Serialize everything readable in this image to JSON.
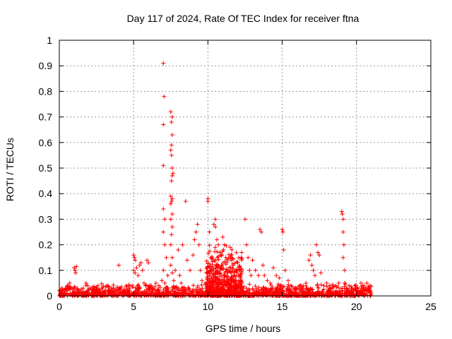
{
  "chart_data": {
    "type": "scatter",
    "title": "Day 117 of 2024, Rate Of TEC Index for receiver ftna",
    "xlabel": "GPS time / hours",
    "ylabel": "ROTI / TECUs",
    "xlim": [
      0,
      25
    ],
    "ylim": [
      0,
      1
    ],
    "x_ticks": [
      "0",
      "5",
      "10",
      "15",
      "20",
      "25"
    ],
    "y_ticks": [
      "0",
      "0.1",
      "0.2",
      "0.3",
      "0.4",
      "0.5",
      "0.6",
      "0.7",
      "0.8",
      "0.9",
      "1"
    ],
    "grid": true,
    "marker": "+",
    "marker_color": "#ff0000",
    "series": [
      {
        "points": [
          [
            0.0,
            0.02
          ],
          [
            0.1,
            0.015
          ],
          [
            0.2,
            0.025
          ],
          [
            0.3,
            0.02
          ],
          [
            0.4,
            0.03
          ],
          [
            0.5,
            0.02
          ],
          [
            0.6,
            0.04
          ],
          [
            0.7,
            0.05
          ],
          [
            0.8,
            0.03
          ],
          [
            0.9,
            0.025
          ],
          [
            1.0,
            0.11
          ],
          [
            1.05,
            0.1
          ],
          [
            1.1,
            0.09
          ],
          [
            1.15,
            0.115
          ],
          [
            1.2,
            0.03
          ],
          [
            1.4,
            0.02
          ],
          [
            1.6,
            0.03
          ],
          [
            1.8,
            0.05
          ],
          [
            1.9,
            0.04
          ],
          [
            2.1,
            0.03
          ],
          [
            2.3,
            0.02
          ],
          [
            2.5,
            0.035
          ],
          [
            2.7,
            0.025
          ],
          [
            2.9,
            0.03
          ],
          [
            3.1,
            0.02
          ],
          [
            3.3,
            0.025
          ],
          [
            3.5,
            0.03
          ],
          [
            3.7,
            0.02
          ],
          [
            3.9,
            0.035
          ],
          [
            4.1,
            0.03
          ],
          [
            4.0,
            0.12
          ],
          [
            4.3,
            0.02
          ],
          [
            4.5,
            0.04
          ],
          [
            4.7,
            0.03
          ],
          [
            4.9,
            0.04
          ],
          [
            5.0,
            0.16
          ],
          [
            5.05,
            0.15
          ],
          [
            5.1,
            0.14
          ],
          [
            5.0,
            0.1
          ],
          [
            5.1,
            0.09
          ],
          [
            5.2,
            0.11
          ],
          [
            5.3,
            0.08
          ],
          [
            5.4,
            0.12
          ],
          [
            5.5,
            0.13
          ],
          [
            5.6,
            0.1
          ],
          [
            5.7,
            0.05
          ],
          [
            5.8,
            0.04
          ],
          [
            5.9,
            0.14
          ],
          [
            6.0,
            0.13
          ],
          [
            6.1,
            0.04
          ],
          [
            6.3,
            0.03
          ],
          [
            6.5,
            0.05
          ],
          [
            6.7,
            0.04
          ],
          [
            6.9,
            0.06
          ],
          [
            7.0,
            0.91
          ],
          [
            7.05,
            0.78
          ],
          [
            7.0,
            0.67
          ],
          [
            7.0,
            0.51
          ],
          [
            7.0,
            0.34
          ],
          [
            7.1,
            0.3
          ],
          [
            7.0,
            0.25
          ],
          [
            7.1,
            0.2
          ],
          [
            7.2,
            0.15
          ],
          [
            7.0,
            0.1
          ],
          [
            7.1,
            0.05
          ],
          [
            7.2,
            0.03
          ],
          [
            7.3,
            0.08
          ],
          [
            7.5,
            0.72
          ],
          [
            7.6,
            0.7
          ],
          [
            7.55,
            0.68
          ],
          [
            7.6,
            0.63
          ],
          [
            7.55,
            0.59
          ],
          [
            7.5,
            0.57
          ],
          [
            7.55,
            0.55
          ],
          [
            7.6,
            0.5
          ],
          [
            7.65,
            0.48
          ],
          [
            7.6,
            0.47
          ],
          [
            7.55,
            0.45
          ],
          [
            7.5,
            0.39
          ],
          [
            7.6,
            0.38
          ],
          [
            7.55,
            0.37
          ],
          [
            7.5,
            0.36
          ],
          [
            7.6,
            0.32
          ],
          [
            7.5,
            0.3
          ],
          [
            7.6,
            0.27
          ],
          [
            7.55,
            0.24
          ],
          [
            7.5,
            0.2
          ],
          [
            7.6,
            0.15
          ],
          [
            7.5,
            0.12
          ],
          [
            7.6,
            0.09
          ],
          [
            7.7,
            0.06
          ],
          [
            7.8,
            0.1
          ],
          [
            8.0,
            0.18
          ],
          [
            8.1,
            0.08
          ],
          [
            8.2,
            0.05
          ],
          [
            8.3,
            0.2
          ],
          [
            8.5,
            0.37
          ],
          [
            8.6,
            0.14
          ],
          [
            8.8,
            0.1
          ],
          [
            9.0,
            0.16
          ],
          [
            9.1,
            0.22
          ],
          [
            9.2,
            0.25
          ],
          [
            9.3,
            0.28
          ],
          [
            9.4,
            0.2
          ],
          [
            9.5,
            0.1
          ],
          [
            9.6,
            0.06
          ],
          [
            9.8,
            0.05
          ],
          [
            10.0,
            0.38
          ],
          [
            10.0,
            0.37
          ],
          [
            10.1,
            0.25
          ],
          [
            10.2,
            0.15
          ],
          [
            10.3,
            0.06
          ],
          [
            10.4,
            0.28
          ],
          [
            10.5,
            0.27
          ],
          [
            10.5,
            0.3
          ],
          [
            10.6,
            0.22
          ],
          [
            10.7,
            0.2
          ],
          [
            10.8,
            0.17
          ],
          [
            10.9,
            0.12
          ],
          [
            11.0,
            0.23
          ],
          [
            11.1,
            0.2
          ],
          [
            11.2,
            0.15
          ],
          [
            11.3,
            0.1
          ],
          [
            11.4,
            0.05
          ],
          [
            11.5,
            0.19
          ],
          [
            11.6,
            0.16
          ],
          [
            11.7,
            0.12
          ],
          [
            11.8,
            0.08
          ],
          [
            11.9,
            0.06
          ],
          [
            12.0,
            0.13
          ],
          [
            12.1,
            0.1
          ],
          [
            12.2,
            0.07
          ],
          [
            12.3,
            0.05
          ],
          [
            12.5,
            0.3
          ],
          [
            12.6,
            0.2
          ],
          [
            12.7,
            0.15
          ],
          [
            12.8,
            0.1
          ],
          [
            12.9,
            0.08
          ],
          [
            13.0,
            0.14
          ],
          [
            13.2,
            0.1
          ],
          [
            13.4,
            0.08
          ],
          [
            13.5,
            0.26
          ],
          [
            13.6,
            0.25
          ],
          [
            13.7,
            0.12
          ],
          [
            13.8,
            0.08
          ],
          [
            14.0,
            0.06
          ],
          [
            14.2,
            0.05
          ],
          [
            14.4,
            0.11
          ],
          [
            14.6,
            0.08
          ],
          [
            14.8,
            0.07
          ],
          [
            15.0,
            0.26
          ],
          [
            15.05,
            0.25
          ],
          [
            15.1,
            0.18
          ],
          [
            15.2,
            0.1
          ],
          [
            15.4,
            0.06
          ],
          [
            15.6,
            0.04
          ],
          [
            15.8,
            0.03
          ],
          [
            16.0,
            0.03
          ],
          [
            16.2,
            0.04
          ],
          [
            16.4,
            0.03
          ],
          [
            16.6,
            0.05
          ],
          [
            16.8,
            0.14
          ],
          [
            16.9,
            0.16
          ],
          [
            17.0,
            0.12
          ],
          [
            17.1,
            0.1
          ],
          [
            17.2,
            0.08
          ],
          [
            17.3,
            0.2
          ],
          [
            17.4,
            0.17
          ],
          [
            17.5,
            0.16
          ],
          [
            17.6,
            0.09
          ],
          [
            17.8,
            0.04
          ],
          [
            18.0,
            0.05
          ],
          [
            18.2,
            0.04
          ],
          [
            18.4,
            0.03
          ],
          [
            18.6,
            0.04
          ],
          [
            18.8,
            0.05
          ],
          [
            19.0,
            0.33
          ],
          [
            19.05,
            0.32
          ],
          [
            19.1,
            0.3
          ],
          [
            19.1,
            0.25
          ],
          [
            19.15,
            0.2
          ],
          [
            19.1,
            0.15
          ],
          [
            19.2,
            0.1
          ],
          [
            19.2,
            0.05
          ],
          [
            19.3,
            0.03
          ],
          [
            19.5,
            0.04
          ],
          [
            19.7,
            0.03
          ],
          [
            19.9,
            0.04
          ],
          [
            20.1,
            0.02
          ],
          [
            20.3,
            0.05
          ],
          [
            20.5,
            0.04
          ],
          [
            20.7,
            0.05
          ],
          [
            20.9,
            0.04
          ]
        ]
      }
    ]
  }
}
